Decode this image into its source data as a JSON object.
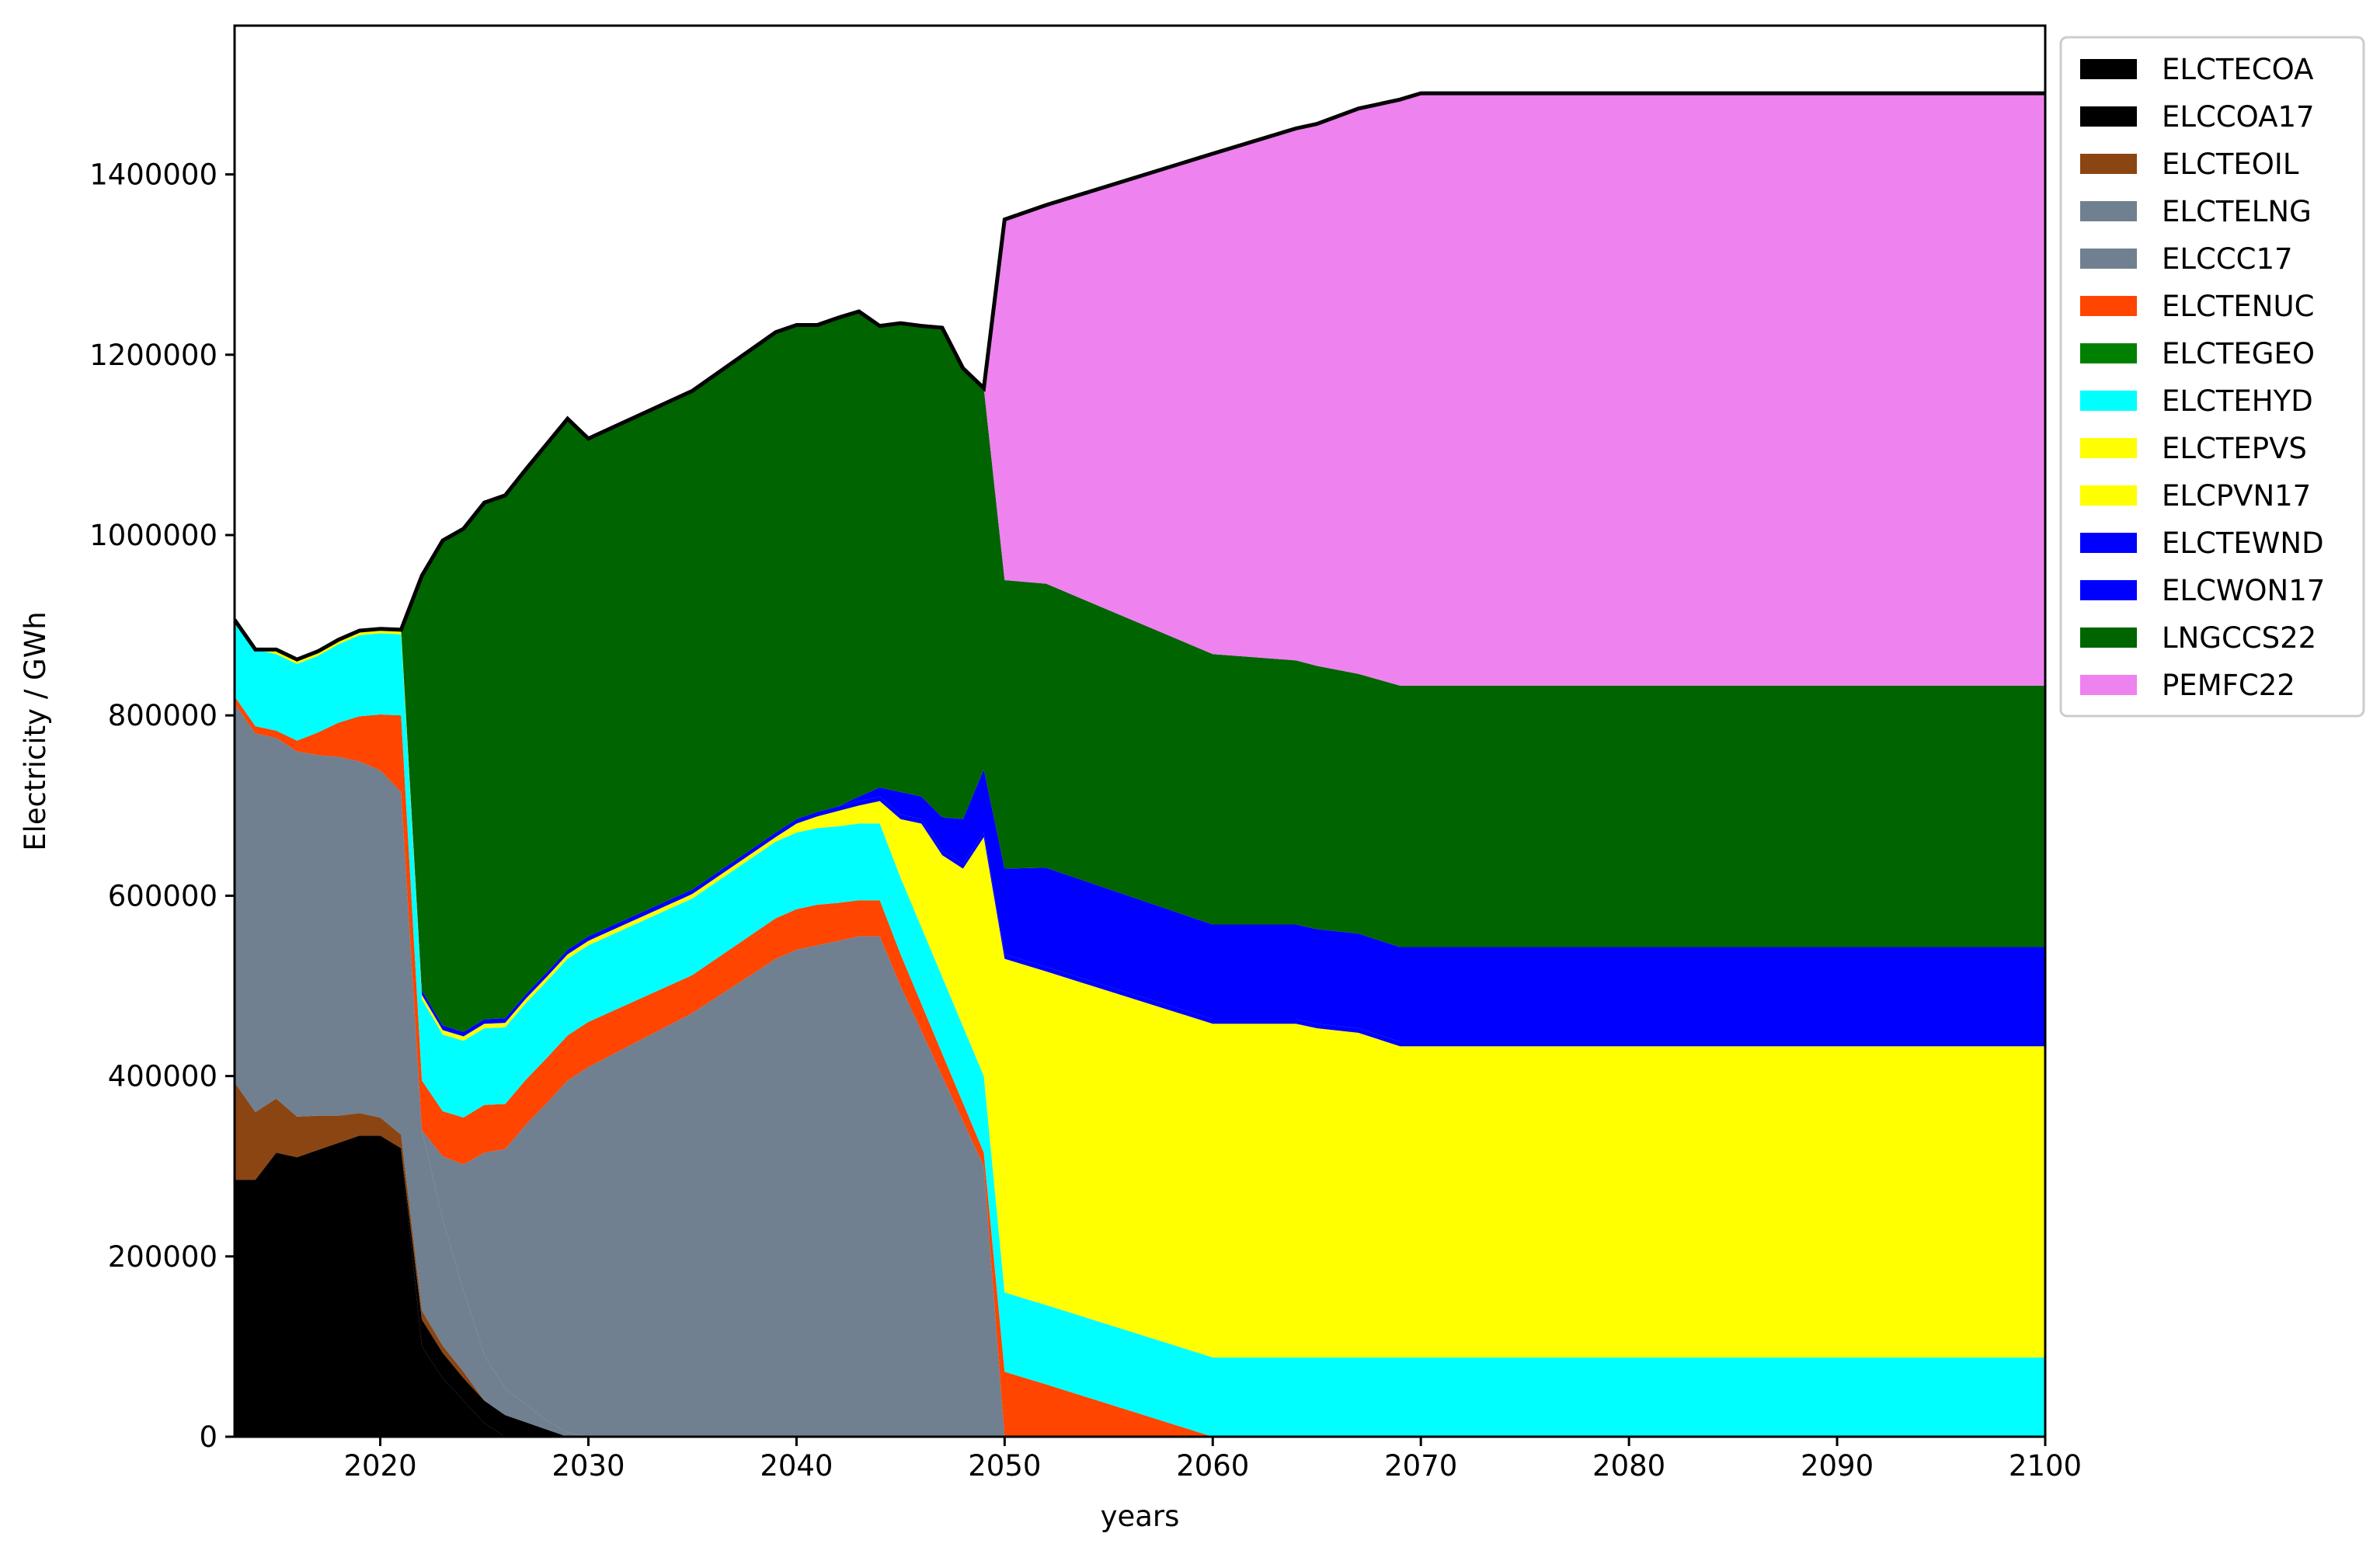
{
  "chart_data": {
    "type": "area",
    "stacked": true,
    "xlabel": "years",
    "ylabel": "Electricity / GWh",
    "xlim": [
      2013,
      2100
    ],
    "ylim": [
      0,
      1565000
    ],
    "xticks": [
      2020,
      2030,
      2040,
      2050,
      2060,
      2070,
      2080,
      2090,
      2100
    ],
    "yticks": [
      0,
      200000,
      400000,
      600000,
      800000,
      1000000,
      1200000,
      1400000
    ],
    "grid": false,
    "legend_position": "top-right-outside",
    "x": [
      2013,
      2014,
      2015,
      2016,
      2017,
      2018,
      2019,
      2020,
      2021,
      2022,
      2023,
      2024,
      2025,
      2026,
      2027,
      2028,
      2029,
      2030,
      2035,
      2039,
      2040,
      2041,
      2042,
      2043,
      2044,
      2045,
      2046,
      2047,
      2048,
      2049,
      2050,
      2052,
      2060,
      2064,
      2065,
      2067,
      2069,
      2070,
      2080,
      2090,
      2100
    ],
    "series": [
      {
        "name": "ELCTECOA",
        "color": "#000000",
        "values": [
          285000,
          285000,
          315000,
          310000,
          318000,
          326000,
          334000,
          334000,
          320000,
          100000,
          65000,
          40000,
          15000,
          0,
          0,
          0,
          0,
          0,
          0,
          0,
          0,
          0,
          0,
          0,
          0,
          0,
          0,
          0,
          0,
          0,
          0,
          0,
          0,
          0,
          0,
          0,
          0,
          0,
          0,
          0,
          0
        ]
      },
      {
        "name": "ELCCOA17",
        "color": "#000000",
        "values": [
          0,
          0,
          0,
          0,
          0,
          0,
          0,
          0,
          0,
          30000,
          28000,
          25000,
          25000,
          24000,
          16000,
          8000,
          0,
          0,
          0,
          0,
          0,
          0,
          0,
          0,
          0,
          0,
          0,
          0,
          0,
          0,
          0,
          0,
          0,
          0,
          0,
          0,
          0,
          0,
          0,
          0,
          0
        ]
      },
      {
        "name": "ELCTEOIL",
        "color": "#8b4513",
        "values": [
          108000,
          75000,
          60000,
          45000,
          38000,
          30000,
          25000,
          20000,
          15000,
          10000,
          8000,
          7000,
          0,
          0,
          0,
          0,
          0,
          0,
          0,
          0,
          0,
          0,
          0,
          0,
          0,
          0,
          0,
          0,
          0,
          0,
          0,
          0,
          0,
          0,
          0,
          0,
          0,
          0,
          0,
          0,
          0
        ]
      },
      {
        "name": "ELCTELNG",
        "color": "#708090",
        "values": [
          420000,
          420000,
          400000,
          405000,
          400000,
          398000,
          390000,
          385000,
          380000,
          200000,
          140000,
          90000,
          50000,
          30000,
          20000,
          10000,
          5000,
          0,
          0,
          0,
          0,
          0,
          0,
          0,
          0,
          0,
          0,
          0,
          0,
          0,
          0,
          0,
          0,
          0,
          0,
          0,
          0,
          0,
          0,
          0,
          0
        ]
      },
      {
        "name": "ELCCC17",
        "color": "#708090",
        "values": [
          0,
          0,
          0,
          0,
          0,
          0,
          0,
          0,
          0,
          0,
          70000,
          140000,
          225000,
          265000,
          310000,
          352000,
          390000,
          410000,
          470000,
          530000,
          540000,
          545000,
          550000,
          555000,
          555000,
          500000,
          450000,
          400000,
          350000,
          300000,
          0,
          0,
          0,
          0,
          0,
          0,
          0,
          0,
          0,
          0,
          0
        ]
      },
      {
        "name": "ELCTENUC",
        "color": "#ff4500",
        "values": [
          8000,
          8000,
          8000,
          12000,
          25000,
          38000,
          50000,
          62000,
          85000,
          55000,
          50000,
          52000,
          53000,
          50000,
          50000,
          50000,
          50000,
          50000,
          42000,
          45000,
          45000,
          45000,
          42000,
          40000,
          40000,
          35000,
          30000,
          25000,
          20000,
          15000,
          72000,
          58000,
          0,
          0,
          0,
          0,
          0,
          0,
          0,
          0,
          0
        ]
      },
      {
        "name": "ELCTEGEO",
        "color": "#008000",
        "values": [
          0,
          0,
          0,
          0,
          0,
          0,
          0,
          0,
          0,
          0,
          0,
          0,
          0,
          0,
          0,
          0,
          0,
          0,
          0,
          0,
          0,
          0,
          0,
          0,
          0,
          0,
          0,
          0,
          0,
          0,
          0,
          0,
          0,
          0,
          0,
          0,
          0,
          0,
          0,
          0,
          0
        ]
      },
      {
        "name": "ELCTEHYD",
        "color": "#00ffff",
        "values": [
          85000,
          85000,
          85000,
          85000,
          85000,
          87000,
          90000,
          90000,
          90000,
          90000,
          85000,
          85000,
          85000,
          85000,
          85000,
          85000,
          85000,
          85000,
          85000,
          85000,
          85000,
          85000,
          85000,
          85000,
          85000,
          85000,
          85000,
          85000,
          85000,
          85000,
          88000,
          88000,
          88000,
          88000,
          88000,
          88000,
          88000,
          88000,
          88000,
          88000,
          88000
        ]
      },
      {
        "name": "ELCTEPVS",
        "color": "#ffff00",
        "values": [
          0,
          0,
          5000,
          5000,
          5000,
          5000,
          5000,
          5000,
          5000,
          5000,
          5000,
          5000,
          5000,
          5000,
          5000,
          5000,
          5000,
          5000,
          5000,
          5000,
          5000,
          5000,
          5000,
          5000,
          5000,
          5000,
          5000,
          5000,
          5000,
          5000,
          5000,
          5000,
          5000,
          5000,
          5000,
          5000,
          5000,
          5000,
          5000,
          5000,
          5000
        ]
      },
      {
        "name": "ELCPVN17",
        "color": "#ffff00",
        "values": [
          0,
          0,
          0,
          0,
          0,
          0,
          0,
          0,
          0,
          0,
          0,
          0,
          0,
          0,
          0,
          0,
          0,
          0,
          0,
          0,
          5000,
          8000,
          12000,
          15000,
          20000,
          60000,
          110000,
          130000,
          170000,
          260000,
          365000,
          365000,
          365000,
          365000,
          360000,
          355000,
          340000,
          340000,
          340000,
          340000,
          340000
        ]
      },
      {
        "name": "ELCTEWND",
        "color": "#0000ff",
        "values": [
          0,
          0,
          0,
          0,
          0,
          0,
          0,
          0,
          0,
          5000,
          5000,
          5000,
          5000,
          5000,
          5000,
          5000,
          5000,
          5000,
          5000,
          5000,
          5000,
          5000,
          5000,
          5000,
          5000,
          5000,
          5000,
          5000,
          5000,
          5000,
          5000,
          5000,
          5000,
          5000,
          5000,
          5000,
          5000,
          5000,
          5000,
          5000,
          5000
        ]
      },
      {
        "name": "ELCWON17",
        "color": "#0000ff",
        "values": [
          0,
          0,
          0,
          0,
          0,
          0,
          0,
          0,
          0,
          0,
          0,
          0,
          0,
          0,
          0,
          0,
          0,
          0,
          0,
          0,
          0,
          0,
          0,
          5000,
          10000,
          25000,
          25000,
          37000,
          50000,
          70000,
          95000,
          110000,
          105000,
          105000,
          105000,
          105000,
          105000,
          105000,
          105000,
          105000,
          105000
        ]
      },
      {
        "name": "LNGCCS22",
        "color": "#006400",
        "values": [
          0,
          0,
          0,
          0,
          0,
          0,
          0,
          0,
          0,
          460000,
          538000,
          558000,
          573000,
          580000,
          582000,
          586000,
          589000,
          552000,
          553000,
          555000,
          548000,
          540000,
          542000,
          538000,
          512000,
          520000,
          522000,
          543000,
          500000,
          423000,
          320000,
          315000,
          300000,
          293000,
          292000,
          288000,
          290000,
          290000,
          290000,
          290000,
          290000
        ]
      },
      {
        "name": "PEMFC22",
        "color": "#ee82ee",
        "values": [
          0,
          0,
          0,
          0,
          0,
          0,
          0,
          0,
          0,
          0,
          0,
          0,
          0,
          0,
          0,
          0,
          0,
          0,
          0,
          0,
          0,
          0,
          0,
          0,
          0,
          0,
          0,
          0,
          0,
          0,
          400000,
          420000,
          555000,
          590000,
          601000,
          627000,
          650000,
          657000,
          657000,
          657000,
          657000
        ]
      }
    ],
    "total_outline_color": "#000000"
  }
}
